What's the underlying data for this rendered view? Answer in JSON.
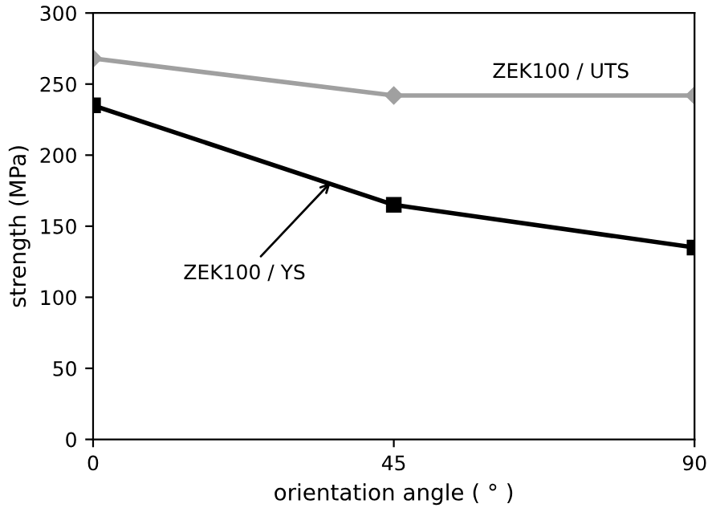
{
  "chart_data": {
    "type": "line",
    "xlabel": "orientation angle ( ° )",
    "ylabel": "strength (MPa)",
    "x": [
      0,
      45,
      90
    ],
    "series": [
      {
        "color": "#a0a0a0",
        "values": [
          268,
          242,
          242
        ],
        "marker": "diamond"
      },
      {
        "color": "#000000",
        "values": [
          235,
          165,
          135
        ],
        "marker": "square"
      }
    ],
    "xlim": [
      0,
      90
    ],
    "xticks": [
      0,
      45,
      90
    ],
    "ylim": [
      0,
      300
    ],
    "yticks": [
      0,
      50,
      100,
      150,
      200,
      250,
      300
    ],
    "grid": false,
    "legend": false,
    "line_style": "solid",
    "annotations": [
      {
        "text": "ZEK100 / UTS",
        "x": 70,
        "y": 242
      },
      {
        "text": "ZEK100 / YS",
        "x": 36,
        "y": 183
      }
    ]
  }
}
